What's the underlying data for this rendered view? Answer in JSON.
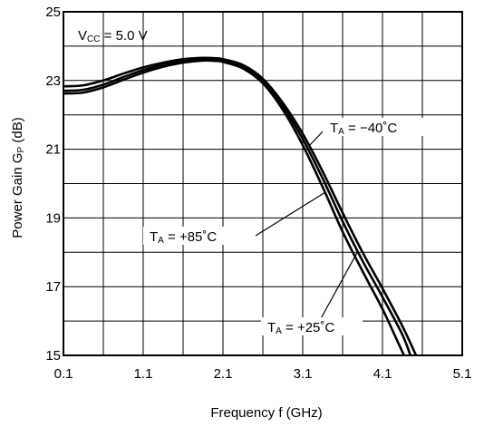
{
  "chart_data": {
    "type": "line",
    "xlabel": "Frequency  f (GHz)",
    "ylabel_main": "Power Gain  G",
    "ylabel_sub": "P",
    "ylabel_unit": " (dB)",
    "xlim": [
      0.1,
      5.1
    ],
    "ylim": [
      15,
      25
    ],
    "x_ticks": [
      "0.1",
      "1.1",
      "2.1",
      "3.1",
      "4.1",
      "5.1"
    ],
    "y_ticks": [
      "15",
      "17",
      "19",
      "21",
      "23",
      "25"
    ],
    "x_tick_values": [
      0.1,
      1.1,
      2.1,
      3.1,
      4.1,
      5.1
    ],
    "y_tick_values": [
      15,
      17,
      19,
      21,
      23,
      25
    ],
    "grid": true,
    "condition": {
      "main": "V",
      "sub": "CC",
      "rest": " = 5.0 V"
    },
    "series": [
      {
        "name": "TA = −40˚C",
        "label": {
          "main": "T",
          "sub": "A",
          "rest": " = −40˚C"
        },
        "points": [
          [
            0.1,
            22.83
          ],
          [
            0.35,
            22.86
          ],
          [
            0.6,
            23.0
          ],
          [
            0.85,
            23.2
          ],
          [
            1.1,
            23.38
          ],
          [
            1.35,
            23.52
          ],
          [
            1.6,
            23.62
          ],
          [
            1.85,
            23.66
          ],
          [
            2.0,
            23.65
          ],
          [
            2.1,
            23.62
          ],
          [
            2.35,
            23.45
          ],
          [
            2.6,
            23.05
          ],
          [
            2.85,
            22.35
          ],
          [
            3.1,
            21.45
          ],
          [
            3.35,
            20.35
          ],
          [
            3.6,
            19.15
          ],
          [
            3.85,
            18.0
          ],
          [
            4.1,
            16.95
          ],
          [
            4.35,
            15.85
          ],
          [
            4.52,
            15.0
          ]
        ]
      },
      {
        "name": "TA = +25˚C",
        "label": {
          "main": "T",
          "sub": "A",
          "rest": " = +25˚C"
        },
        "points": [
          [
            0.1,
            22.7
          ],
          [
            0.35,
            22.73
          ],
          [
            0.6,
            22.88
          ],
          [
            0.85,
            23.1
          ],
          [
            1.1,
            23.3
          ],
          [
            1.35,
            23.46
          ],
          [
            1.6,
            23.57
          ],
          [
            1.85,
            23.62
          ],
          [
            2.0,
            23.61
          ],
          [
            2.1,
            23.58
          ],
          [
            2.35,
            23.4
          ],
          [
            2.6,
            22.98
          ],
          [
            2.85,
            22.25
          ],
          [
            3.1,
            21.3
          ],
          [
            3.35,
            20.15
          ],
          [
            3.6,
            18.9
          ],
          [
            3.85,
            17.75
          ],
          [
            4.1,
            16.7
          ],
          [
            4.35,
            15.6
          ],
          [
            4.45,
            15.0
          ]
        ]
      },
      {
        "name": "TA = +85˚C",
        "label": {
          "main": "T",
          "sub": "A",
          "rest": " = +85˚C"
        },
        "points": [
          [
            0.1,
            22.62
          ],
          [
            0.35,
            22.65
          ],
          [
            0.6,
            22.8
          ],
          [
            0.85,
            23.02
          ],
          [
            1.1,
            23.23
          ],
          [
            1.35,
            23.4
          ],
          [
            1.6,
            23.52
          ],
          [
            1.85,
            23.58
          ],
          [
            2.0,
            23.57
          ],
          [
            2.1,
            23.54
          ],
          [
            2.35,
            23.35
          ],
          [
            2.6,
            22.92
          ],
          [
            2.85,
            22.15
          ],
          [
            3.1,
            21.12
          ],
          [
            3.35,
            19.9
          ],
          [
            3.6,
            18.6
          ],
          [
            3.85,
            17.45
          ],
          [
            4.1,
            16.35
          ],
          [
            4.3,
            15.35
          ],
          [
            4.37,
            15.0
          ]
        ]
      }
    ]
  }
}
